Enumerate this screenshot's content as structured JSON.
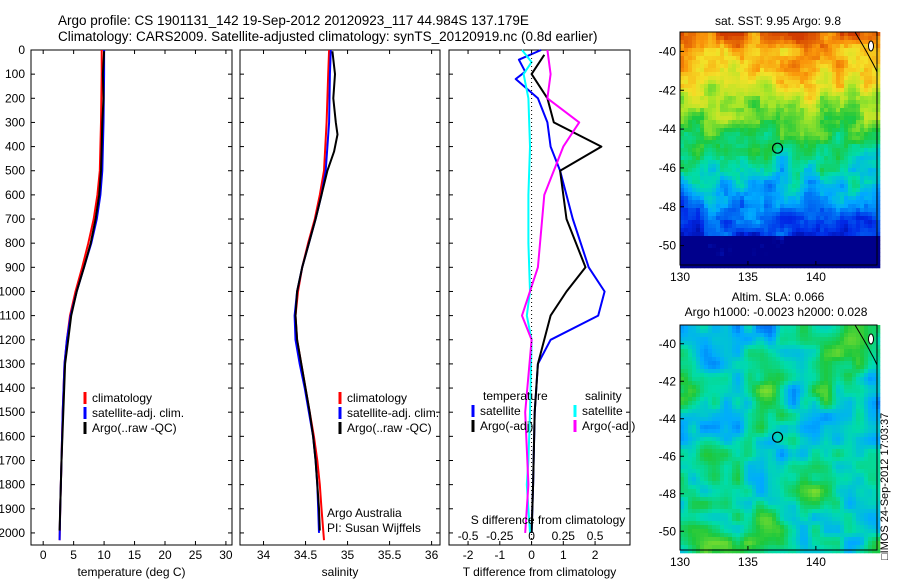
{
  "header": {
    "line1": "Argo profile: CS 1901131_142 19-Sep-2012 20120923_117 44.984S 137.179E",
    "line2": "Climatology: CARS2009. Satellite-adjusted climatology: synTS_20120919.nc (0.8d earlier)"
  },
  "stamp": "□IMOS 24-Sep-2012 17:03:37",
  "colors": {
    "climatology": "#ff0000",
    "satellite": "#0000ff",
    "argo": "#000000",
    "sal_satellite": "#00ffff",
    "sal_argo": "#ff00ff"
  },
  "chart_data": [
    {
      "type": "line",
      "id": "temperature",
      "xlabel": "temperature (deg C)",
      "ylabel": "",
      "xlim": [
        -2,
        31
      ],
      "ylim": [
        2050,
        0
      ],
      "xticks": [
        0,
        5,
        10,
        15,
        20,
        25,
        30
      ],
      "yticks": [
        0,
        100,
        200,
        300,
        400,
        500,
        600,
        700,
        800,
        900,
        1000,
        1100,
        1200,
        1300,
        1400,
        1500,
        1600,
        1700,
        1800,
        1900,
        2000
      ],
      "legend": [
        "climatology",
        "satellite-adj. clim.",
        "Argo(..raw -QC)"
      ],
      "series": [
        {
          "name": "climatology",
          "color": "#ff0000",
          "points": [
            [
              9.6,
              0
            ],
            [
              9.6,
              100
            ],
            [
              9.5,
              300
            ],
            [
              9.3,
              500
            ],
            [
              8.9,
              600
            ],
            [
              8.3,
              700
            ],
            [
              7.4,
              800
            ],
            [
              6.4,
              900
            ],
            [
              5.3,
              1000
            ],
            [
              4.4,
              1100
            ],
            [
              3.9,
              1200
            ],
            [
              3.5,
              1300
            ],
            [
              3.2,
              1500
            ],
            [
              3.0,
              1700
            ],
            [
              2.8,
              1900
            ],
            [
              2.7,
              2030
            ]
          ]
        },
        {
          "name": "satellite-adj. clim.",
          "color": "#0000ff",
          "points": [
            [
              10.0,
              0
            ],
            [
              10.0,
              100
            ],
            [
              9.9,
              300
            ],
            [
              9.7,
              500
            ],
            [
              9.4,
              600
            ],
            [
              8.8,
              700
            ],
            [
              7.9,
              800
            ],
            [
              6.7,
              900
            ],
            [
              5.5,
              1000
            ],
            [
              4.5,
              1100
            ],
            [
              3.9,
              1200
            ],
            [
              3.5,
              1300
            ],
            [
              3.2,
              1500
            ],
            [
              3.0,
              1700
            ],
            [
              2.8,
              1900
            ],
            [
              2.7,
              2030
            ]
          ]
        },
        {
          "name": "Argo(..raw -QC)",
          "color": "#000000",
          "points": [
            [
              10.0,
              5
            ],
            [
              9.8,
              100
            ],
            [
              9.9,
              200
            ],
            [
              9.7,
              300
            ],
            [
              9.6,
              400
            ],
            [
              9.5,
              500
            ],
            [
              9.2,
              600
            ],
            [
              8.6,
              700
            ],
            [
              7.8,
              800
            ],
            [
              6.7,
              900
            ],
            [
              5.5,
              1000
            ],
            [
              4.6,
              1100
            ],
            [
              4.1,
              1200
            ],
            [
              3.6,
              1300
            ],
            [
              3.3,
              1500
            ],
            [
              3.0,
              1700
            ],
            [
              2.8,
              1900
            ],
            [
              2.7,
              1990
            ]
          ]
        }
      ]
    },
    {
      "type": "line",
      "id": "salinity",
      "xlabel": "salinity",
      "ylabel": "",
      "xlim": [
        33.72,
        36.1
      ],
      "ylim": [
        2050,
        0
      ],
      "xticks": [
        34,
        34.5,
        35,
        35.5,
        36
      ],
      "legend": [
        "climatology",
        "satellite-adj. clim.",
        "Argo(..raw -QC)"
      ],
      "annotation": [
        "Argo Australia",
        "PI: Susan Wijffels"
      ],
      "series": [
        {
          "name": "climatology",
          "color": "#ff0000",
          "points": [
            [
              34.78,
              0
            ],
            [
              34.77,
              100
            ],
            [
              34.75,
              300
            ],
            [
              34.72,
              500
            ],
            [
              34.67,
              600
            ],
            [
              34.61,
              700
            ],
            [
              34.53,
              800
            ],
            [
              34.46,
              900
            ],
            [
              34.41,
              1000
            ],
            [
              34.38,
              1100
            ],
            [
              34.4,
              1200
            ],
            [
              34.45,
              1300
            ],
            [
              34.5,
              1400
            ],
            [
              34.55,
              1500
            ],
            [
              34.6,
              1600
            ],
            [
              34.64,
              1700
            ],
            [
              34.67,
              1800
            ],
            [
              34.69,
              1900
            ],
            [
              34.72,
              2030
            ]
          ]
        },
        {
          "name": "satellite-adj. clim.",
          "color": "#0000ff",
          "points": [
            [
              34.8,
              0
            ],
            [
              34.79,
              100
            ],
            [
              34.78,
              300
            ],
            [
              34.74,
              500
            ],
            [
              34.69,
              600
            ],
            [
              34.62,
              700
            ],
            [
              34.54,
              800
            ],
            [
              34.46,
              900
            ],
            [
              34.4,
              1000
            ],
            [
              34.37,
              1100
            ],
            [
              34.38,
              1200
            ],
            [
              34.43,
              1300
            ],
            [
              34.49,
              1400
            ],
            [
              34.54,
              1500
            ],
            [
              34.59,
              1600
            ],
            [
              34.62,
              1700
            ],
            [
              34.64,
              1800
            ],
            [
              34.65,
              1900
            ],
            [
              34.66,
              2000
            ]
          ]
        },
        {
          "name": "Argo(..raw -QC)",
          "color": "#000000",
          "points": [
            [
              34.82,
              5
            ],
            [
              34.85,
              100
            ],
            [
              34.83,
              200
            ],
            [
              34.86,
              300
            ],
            [
              34.88,
              350
            ],
            [
              34.84,
              420
            ],
            [
              34.76,
              500
            ],
            [
              34.69,
              600
            ],
            [
              34.62,
              700
            ],
            [
              34.54,
              800
            ],
            [
              34.46,
              900
            ],
            [
              34.4,
              1000
            ],
            [
              34.38,
              1100
            ],
            [
              34.4,
              1200
            ],
            [
              34.45,
              1300
            ],
            [
              34.5,
              1400
            ],
            [
              34.55,
              1500
            ],
            [
              34.59,
              1600
            ],
            [
              34.62,
              1700
            ],
            [
              34.64,
              1800
            ],
            [
              34.66,
              1900
            ],
            [
              34.67,
              1990
            ]
          ]
        }
      ]
    },
    {
      "type": "line",
      "id": "difference",
      "xlabel": "T difference from climatology",
      "xlabel_top": "S difference from climatology",
      "xlim": [
        -2.6,
        3.1
      ],
      "ylim": [
        2050,
        0
      ],
      "xticks": [
        -2,
        -1,
        0,
        1,
        2
      ],
      "xticklabels": [
        "-2",
        "-1",
        "0",
        "1",
        "2"
      ],
      "sticks": [
        -0.5,
        -0.25,
        0,
        0.25,
        0.5
      ],
      "sticklabels": [
        "-0.5",
        "-0.25",
        "0",
        "0.25",
        "0.5"
      ],
      "legend_temperature": {
        "title": "temperature",
        "items": [
          "satellite",
          "Argo(-adj)"
        ]
      },
      "legend_salinity": {
        "title": "salinity",
        "items": [
          "satellite",
          "Argo(-adj)"
        ]
      },
      "series": [
        {
          "name": "temperature satellite",
          "color": "#0000ff",
          "points": [
            [
              0.3,
              0
            ],
            [
              -0.4,
              40
            ],
            [
              -0.2,
              90
            ],
            [
              -0.5,
              120
            ],
            [
              0.2,
              200
            ],
            [
              0.5,
              300
            ],
            [
              0.6,
              400
            ],
            [
              0.9,
              500
            ],
            [
              1.3,
              700
            ],
            [
              1.8,
              900
            ],
            [
              2.3,
              1000
            ],
            [
              2.1,
              1100
            ],
            [
              0.6,
              1200
            ],
            [
              0.2,
              1300
            ],
            [
              0.1,
              1500
            ],
            [
              0.05,
              1800
            ],
            [
              0.0,
              2000
            ]
          ]
        },
        {
          "name": "temperature Argo(-adj)",
          "color": "#000000",
          "points": [
            [
              0.4,
              20
            ],
            [
              0.0,
              100
            ],
            [
              0.5,
              200
            ],
            [
              0.7,
              300
            ],
            [
              2.2,
              400
            ],
            [
              0.9,
              500
            ],
            [
              1.1,
              700
            ],
            [
              1.7,
              900
            ],
            [
              1.1,
              1000
            ],
            [
              0.6,
              1100
            ],
            [
              0.2,
              1300
            ],
            [
              0.1,
              1500
            ],
            [
              0.05,
              1800
            ],
            [
              0.0,
              2000
            ]
          ]
        },
        {
          "name": "salinity satellite",
          "color": "#00ffff",
          "points": [
            [
              -0.3,
              0
            ],
            [
              0.0,
              50
            ],
            [
              -0.25,
              100
            ],
            [
              -0.1,
              200
            ],
            [
              -0.05,
              400
            ],
            [
              -0.1,
              600
            ],
            [
              -0.1,
              800
            ],
            [
              -0.05,
              1000
            ],
            [
              -0.15,
              1100
            ],
            [
              0.0,
              1200
            ],
            [
              -0.05,
              1500
            ],
            [
              -0.1,
              1700
            ],
            [
              -0.15,
              1800
            ],
            [
              -0.05,
              2000
            ]
          ]
        },
        {
          "name": "salinity Argo(-adj)",
          "color": "#ff00ff",
          "points": [
            [
              0.5,
              0
            ],
            [
              0.6,
              100
            ],
            [
              0.5,
              200
            ],
            [
              1.5,
              300
            ],
            [
              1.0,
              400
            ],
            [
              0.4,
              600
            ],
            [
              0.2,
              900
            ],
            [
              -0.3,
              1100
            ],
            [
              0.0,
              1200
            ],
            [
              -0.2,
              1500
            ],
            [
              -0.1,
              1800
            ],
            [
              -0.2,
              2000
            ]
          ]
        },
        {
          "name": "zero reference",
          "color": "#000000",
          "dotted": true,
          "points": [
            [
              0,
              0
            ],
            [
              0,
              2050
            ]
          ]
        }
      ]
    },
    {
      "type": "heatmap",
      "id": "sst_map",
      "title": "sat. SST: 9.95 Argo: 9.8",
      "xlim": [
        130,
        144.5
      ],
      "ylim": [
        -51,
        -39
      ],
      "xticks": [
        130,
        135,
        140
      ],
      "yticks": [
        -40,
        -42,
        -44,
        -46,
        -48,
        -50
      ],
      "marker": [
        137.179,
        -44.984
      ]
    },
    {
      "type": "heatmap",
      "id": "sla_map",
      "title": "Altim. SLA: 0.066",
      "subtitle": "Argo h1000: -0.0023 h2000: 0.028",
      "xlim": [
        130,
        144.5
      ],
      "ylim": [
        -51,
        -39
      ],
      "xticks": [
        130,
        135,
        140
      ],
      "yticks": [
        -40,
        -42,
        -44,
        -46,
        -48,
        -50
      ],
      "marker": [
        137.179,
        -44.984
      ]
    }
  ]
}
